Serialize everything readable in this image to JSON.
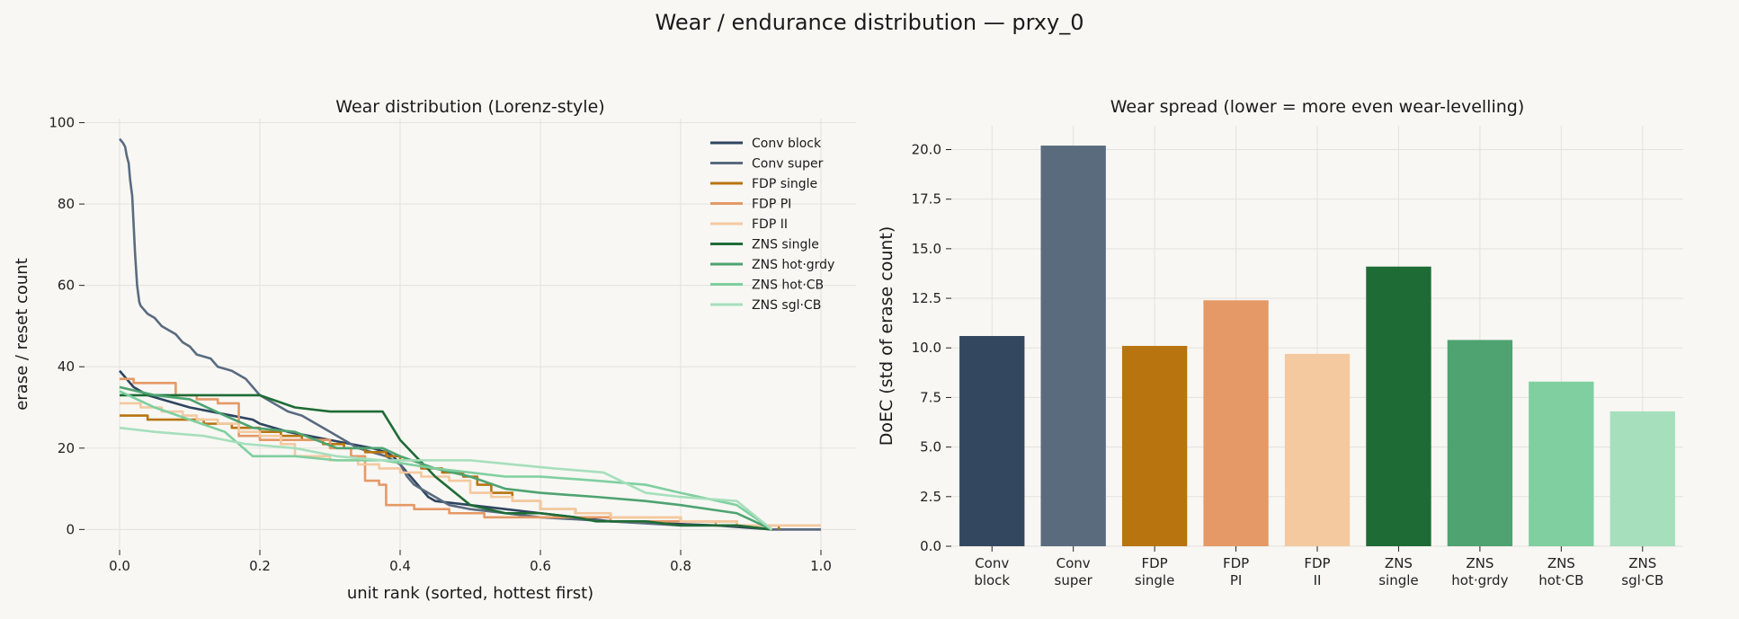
{
  "figure": {
    "title": "Wear / endurance distribution — prxy_0"
  },
  "chart_data": [
    {
      "type": "line",
      "title": "Wear distribution (Lorenz-style)",
      "xlabel": "unit rank (sorted, hottest first)",
      "ylabel": "erase / reset count",
      "xlim": [
        -0.05,
        1.05
      ],
      "ylim": [
        -5,
        101
      ],
      "x_ticks": [
        0.0,
        0.2,
        0.4,
        0.6,
        0.8,
        1.0
      ],
      "x_tick_labels": [
        "0.0",
        "0.2",
        "0.4",
        "0.6",
        "0.8",
        "1.0"
      ],
      "y_ticks": [
        0,
        20,
        40,
        60,
        80,
        100
      ],
      "y_tick_labels": [
        "0",
        "20",
        "40",
        "60",
        "80",
        "100"
      ],
      "grid": true,
      "legend_position": "top-right",
      "series": [
        {
          "name": "Conv block",
          "color": "#2f4560",
          "step": false,
          "points": [
            [
              0,
              39
            ],
            [
              0.005,
              38
            ],
            [
              0.01,
              37
            ],
            [
              0.015,
              36
            ],
            [
              0.02,
              35
            ],
            [
              0.03,
              34
            ],
            [
              0.04,
              33
            ],
            [
              0.06,
              32
            ],
            [
              0.08,
              31
            ],
            [
              0.1,
              30
            ],
            [
              0.13,
              29
            ],
            [
              0.16,
              28
            ],
            [
              0.19,
              27
            ],
            [
              0.2,
              26
            ],
            [
              0.22,
              25
            ],
            [
              0.24,
              24
            ],
            [
              0.27,
              23
            ],
            [
              0.3,
              22
            ],
            [
              0.33,
              21
            ],
            [
              0.36,
              20
            ],
            [
              0.38,
              19
            ],
            [
              0.39,
              18
            ],
            [
              0.4,
              16
            ],
            [
              0.41,
              14
            ],
            [
              0.42,
              12
            ],
            [
              0.43,
              10
            ],
            [
              0.44,
              8
            ],
            [
              0.45,
              7
            ],
            [
              0.5,
              6
            ],
            [
              0.55,
              5
            ],
            [
              0.6,
              4
            ],
            [
              0.65,
              3
            ],
            [
              0.7,
              2
            ],
            [
              0.85,
              1
            ],
            [
              0.93,
              0
            ],
            [
              1.0,
              0
            ]
          ]
        },
        {
          "name": "Conv super",
          "color": "#5a6b80",
          "step": false,
          "points": [
            [
              0,
              96
            ],
            [
              0.005,
              95
            ],
            [
              0.008,
              94
            ],
            [
              0.01,
              92
            ],
            [
              0.013,
              90
            ],
            [
              0.015,
              86
            ],
            [
              0.018,
              82
            ],
            [
              0.02,
              75
            ],
            [
              0.022,
              68
            ],
            [
              0.025,
              60
            ],
            [
              0.028,
              56
            ],
            [
              0.03,
              55
            ],
            [
              0.04,
              53
            ],
            [
              0.05,
              52
            ],
            [
              0.06,
              50
            ],
            [
              0.07,
              49
            ],
            [
              0.08,
              48
            ],
            [
              0.09,
              46
            ],
            [
              0.1,
              45
            ],
            [
              0.11,
              43
            ],
            [
              0.13,
              42
            ],
            [
              0.14,
              40
            ],
            [
              0.16,
              39
            ],
            [
              0.18,
              37
            ],
            [
              0.2,
              33
            ],
            [
              0.22,
              31
            ],
            [
              0.24,
              29
            ],
            [
              0.26,
              28
            ],
            [
              0.28,
              26
            ],
            [
              0.3,
              24
            ],
            [
              0.32,
              22
            ],
            [
              0.34,
              20
            ],
            [
              0.36,
              19
            ],
            [
              0.38,
              18
            ],
            [
              0.4,
              16
            ],
            [
              0.41,
              13
            ],
            [
              0.42,
              11
            ],
            [
              0.43,
              10
            ],
            [
              0.45,
              8
            ],
            [
              0.47,
              6
            ],
            [
              0.5,
              5
            ],
            [
              0.55,
              4
            ],
            [
              0.6,
              3
            ],
            [
              0.7,
              2
            ],
            [
              0.8,
              1
            ],
            [
              0.88,
              1
            ],
            [
              0.93,
              0
            ],
            [
              1.0,
              0
            ]
          ]
        },
        {
          "name": "FDP single",
          "color": "#b87410",
          "step": true,
          "points": [
            [
              0,
              28
            ],
            [
              0.04,
              27
            ],
            [
              0.08,
              27
            ],
            [
              0.12,
              26
            ],
            [
              0.16,
              25
            ],
            [
              0.2,
              24
            ],
            [
              0.23,
              23
            ],
            [
              0.26,
              22
            ],
            [
              0.29,
              21
            ],
            [
              0.32,
              20
            ],
            [
              0.35,
              19
            ],
            [
              0.38,
              18
            ],
            [
              0.4,
              17
            ],
            [
              0.43,
              15
            ],
            [
              0.46,
              14
            ],
            [
              0.49,
              13
            ],
            [
              0.51,
              11
            ],
            [
              0.53,
              9
            ],
            [
              0.56,
              7
            ],
            [
              0.6,
              5
            ],
            [
              0.65,
              4
            ],
            [
              0.7,
              3
            ],
            [
              0.8,
              2
            ],
            [
              0.88,
              1
            ],
            [
              0.94,
              0
            ]
          ]
        },
        {
          "name": "FDP PI",
          "color": "#e59966",
          "step": true,
          "points": [
            [
              0,
              37
            ],
            [
              0.02,
              36
            ],
            [
              0.05,
              36
            ],
            [
              0.08,
              33
            ],
            [
              0.11,
              32
            ],
            [
              0.14,
              31
            ],
            [
              0.17,
              23
            ],
            [
              0.2,
              22
            ],
            [
              0.25,
              22
            ],
            [
              0.3,
              20
            ],
            [
              0.33,
              18
            ],
            [
              0.35,
              12
            ],
            [
              0.37,
              11
            ],
            [
              0.38,
              6
            ],
            [
              0.42,
              5
            ],
            [
              0.47,
              4
            ],
            [
              0.52,
              3
            ],
            [
              0.6,
              3
            ],
            [
              0.7,
              2
            ],
            [
              0.8,
              2
            ],
            [
              0.85,
              1
            ],
            [
              1.0,
              1
            ]
          ]
        },
        {
          "name": "FDP II",
          "color": "#f4c9a0",
          "step": true,
          "points": [
            [
              0,
              31
            ],
            [
              0.03,
              30
            ],
            [
              0.06,
              29
            ],
            [
              0.09,
              28
            ],
            [
              0.11,
              27
            ],
            [
              0.14,
              26
            ],
            [
              0.17,
              24
            ],
            [
              0.2,
              23
            ],
            [
              0.23,
              21
            ],
            [
              0.25,
              18
            ],
            [
              0.3,
              17
            ],
            [
              0.34,
              16
            ],
            [
              0.37,
              15
            ],
            [
              0.4,
              14
            ],
            [
              0.43,
              13
            ],
            [
              0.47,
              12
            ],
            [
              0.5,
              9
            ],
            [
              0.53,
              8
            ],
            [
              0.56,
              7
            ],
            [
              0.6,
              5
            ],
            [
              0.65,
              4
            ],
            [
              0.7,
              3
            ],
            [
              0.8,
              2
            ],
            [
              0.88,
              1
            ],
            [
              1.0,
              1
            ]
          ]
        },
        {
          "name": "ZNS single",
          "color": "#1e6b36",
          "step": false,
          "points": [
            [
              0,
              33
            ],
            [
              0.1,
              33
            ],
            [
              0.15,
              33
            ],
            [
              0.2,
              33
            ],
            [
              0.25,
              30
            ],
            [
              0.3,
              29
            ],
            [
              0.375,
              29
            ],
            [
              0.4,
              22
            ],
            [
              0.45,
              13
            ],
            [
              0.5,
              6
            ],
            [
              0.55,
              4
            ],
            [
              0.6,
              4
            ],
            [
              0.65,
              3
            ],
            [
              0.68,
              2
            ],
            [
              0.75,
              2
            ],
            [
              0.8,
              1
            ],
            [
              0.88,
              1
            ],
            [
              0.93,
              0
            ]
          ]
        },
        {
          "name": "ZNS hot·grdy",
          "color": "#4ea371",
          "step": false,
          "points": [
            [
              0,
              35
            ],
            [
              0.05,
              33
            ],
            [
              0.1,
              32
            ],
            [
              0.125,
              30
            ],
            [
              0.15,
              28
            ],
            [
              0.19,
              25
            ],
            [
              0.25,
              24
            ],
            [
              0.31,
              20
            ],
            [
              0.375,
              20
            ],
            [
              0.4,
              18
            ],
            [
              0.45,
              15
            ],
            [
              0.5,
              13
            ],
            [
              0.55,
              10
            ],
            [
              0.6,
              9
            ],
            [
              0.68,
              8
            ],
            [
              0.75,
              7
            ],
            [
              0.8,
              6
            ],
            [
              0.88,
              4
            ],
            [
              0.93,
              0
            ]
          ]
        },
        {
          "name": "ZNS hot·CB",
          "color": "#7fcfa0",
          "step": false,
          "points": [
            [
              0,
              34
            ],
            [
              0.05,
              30
            ],
            [
              0.1,
              27
            ],
            [
              0.15,
              24
            ],
            [
              0.19,
              18
            ],
            [
              0.25,
              18
            ],
            [
              0.31,
              17
            ],
            [
              0.375,
              17
            ],
            [
              0.45,
              15
            ],
            [
              0.5,
              14
            ],
            [
              0.55,
              13
            ],
            [
              0.6,
              13
            ],
            [
              0.68,
              12
            ],
            [
              0.75,
              11
            ],
            [
              0.8,
              9
            ],
            [
              0.88,
              6
            ],
            [
              0.93,
              0
            ]
          ]
        },
        {
          "name": "ZNS sgl·CB",
          "color": "#a6dfbc",
          "step": false,
          "points": [
            [
              0,
              25
            ],
            [
              0.05,
              24
            ],
            [
              0.12,
              23
            ],
            [
              0.18,
              21
            ],
            [
              0.25,
              20
            ],
            [
              0.31,
              18
            ],
            [
              0.375,
              17
            ],
            [
              0.44,
              17
            ],
            [
              0.5,
              17
            ],
            [
              0.56,
              16
            ],
            [
              0.62,
              15
            ],
            [
              0.69,
              14
            ],
            [
              0.75,
              9
            ],
            [
              0.8,
              8
            ],
            [
              0.88,
              7
            ],
            [
              0.93,
              0
            ]
          ]
        }
      ]
    },
    {
      "type": "bar",
      "title": "Wear spread (lower = more even wear-levelling)",
      "xlabel": "",
      "ylabel": "DoEC (std of erase count)",
      "ylim": [
        0,
        21.2
      ],
      "y_ticks": [
        0,
        2.5,
        5,
        7.5,
        10,
        12.5,
        15,
        17.5,
        20
      ],
      "y_tick_labels": [
        "0.0",
        "2.5",
        "5.0",
        "7.5",
        "10.0",
        "12.5",
        "15.0",
        "17.5",
        "20.0"
      ],
      "grid": true,
      "categories": [
        "Conv\nblock",
        "Conv\nsuper",
        "FDP\nsingle",
        "FDP\nPI",
        "FDP\nII",
        "ZNS\nsingle",
        "ZNS\nhot·grdy",
        "ZNS\nhot·CB",
        "ZNS\nsgl·CB"
      ],
      "values": [
        10.6,
        20.2,
        10.1,
        12.4,
        9.7,
        14.1,
        10.4,
        8.3,
        6.8
      ],
      "colors": [
        "#33485f",
        "#5a6b7d",
        "#b8740e",
        "#e59966",
        "#f4c9a0",
        "#1e6b36",
        "#4ea371",
        "#7fcfa0",
        "#a6dfbc"
      ]
    }
  ]
}
